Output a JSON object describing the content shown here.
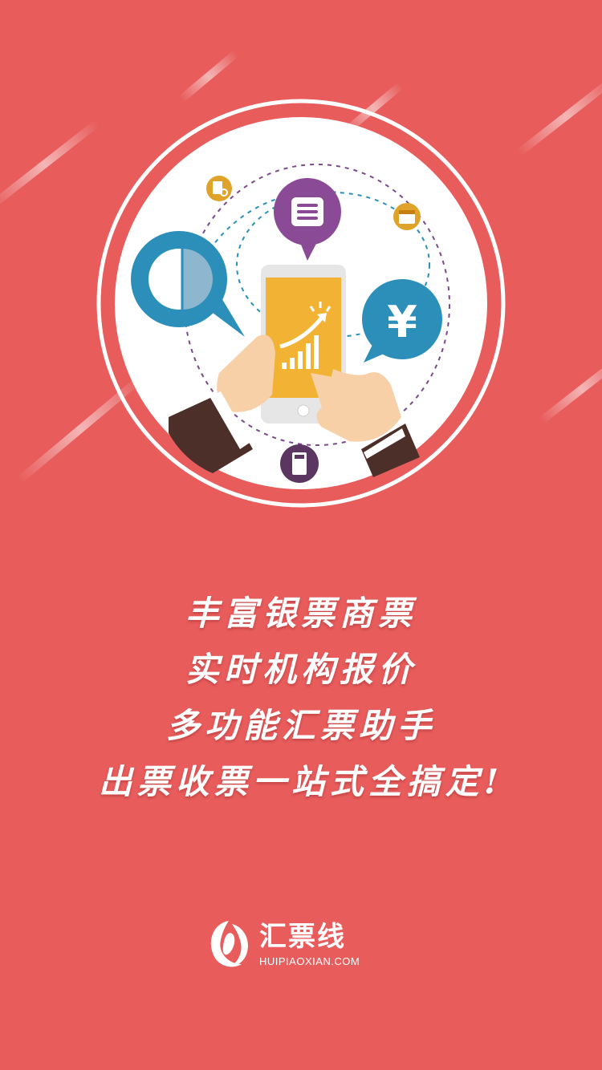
{
  "slogans": [
    "丰富银票商票",
    "实时机构报价",
    "多功能汇票助手",
    "出票收票一站式全搞定!"
  ],
  "brand": {
    "name": "汇票线",
    "url": "HUIPIAOXIAN.COM"
  },
  "hero": {
    "currency_symbol": "¥"
  },
  "colors": {
    "background": "#e85c5c",
    "phone_screen": "#f2b233",
    "bubble_blue": "#2b8fba",
    "bubble_purple": "#8b4a96",
    "icon_orange": "#e0a32a",
    "icon_dark_purple": "#5a3660"
  },
  "icons": [
    "pie-chart-bubble-icon",
    "message-bubble-icon",
    "yen-bubble-icon",
    "document-search-icon",
    "calendar-icon",
    "calculator-icon",
    "smartphone-growth-icon",
    "brand-logo-icon"
  ]
}
